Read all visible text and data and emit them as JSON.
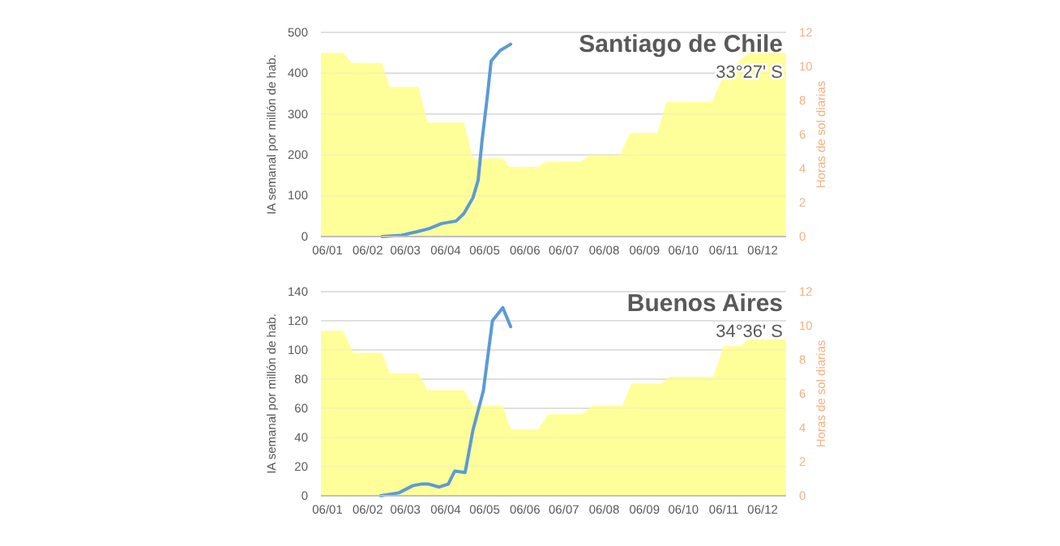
{
  "chart_data": [
    {
      "type": "line",
      "title": "Santiago de Chile",
      "subtitle": "33°27' S",
      "ylabel": "IA semanal por millón de hab.",
      "y2label": "Horas de sol diarias",
      "grid": "y",
      "xlim": [
        "--01-01",
        "--12-24"
      ],
      "xticks": [
        {
          "value": "--01-06",
          "label": "06/01"
        },
        {
          "value": "--02-06",
          "label": "06/02"
        },
        {
          "value": "--03-06",
          "label": "06/03"
        },
        {
          "value": "--04-06",
          "label": "06/04"
        },
        {
          "value": "--05-06",
          "label": "06/05"
        },
        {
          "value": "--06-06",
          "label": "06/06"
        },
        {
          "value": "--07-06",
          "label": "06/07"
        },
        {
          "value": "--08-06",
          "label": "06/08"
        },
        {
          "value": "--09-06",
          "label": "06/09"
        },
        {
          "value": "--10-06",
          "label": "06/10"
        },
        {
          "value": "--11-06",
          "label": "06/11"
        },
        {
          "value": "--12-06",
          "label": "06/12"
        }
      ],
      "ylim": [
        0,
        500
      ],
      "yticks": [
        0,
        100,
        200,
        300,
        400,
        500
      ],
      "y2lim": [
        0,
        12
      ],
      "y2ticks": [
        0,
        2,
        4,
        6,
        8,
        10,
        12
      ],
      "series": [
        {
          "type": "area",
          "axis": "y2",
          "color": "#ffff99",
          "x": [
            "--01-01",
            "--01-18",
            "--01-25",
            "--02-17",
            "--02-23",
            "--03-16",
            "--03-23",
            "--04-20",
            "--04-27",
            "--05-20",
            "--05-25",
            "--06-16",
            "--06-22",
            "--07-19",
            "--07-26",
            "--08-18",
            "--08-26",
            "--09-16",
            "--09-23",
            "--10-28",
            "--11-06",
            "--11-25",
            "--12-24"
          ],
          "values": [
            10.8,
            10.8,
            10.2,
            10.2,
            8.8,
            8.8,
            6.7,
            6.7,
            4.6,
            4.6,
            4.1,
            4.1,
            4.4,
            4.4,
            4.8,
            4.8,
            6.1,
            6.1,
            7.9,
            7.9,
            9.5,
            10.8,
            10.8
          ]
        },
        {
          "color": "#5b9bd5",
          "x": [
            "--02-17",
            "--03-03",
            "--03-15",
            "--03-24",
            "--04-03",
            "--04-14",
            "--04-20",
            "--04-27",
            "--05-01",
            "--05-04",
            "--05-08",
            "--05-11",
            "--05-18",
            "--05-26"
          ],
          "values": [
            0,
            3,
            12,
            19,
            32,
            38,
            56,
            95,
            138,
            235,
            341,
            430,
            456,
            471
          ]
        }
      ]
    },
    {
      "type": "line",
      "title": "Buenos Aires",
      "subtitle": "34°36' S",
      "ylabel": "IA semanal por millón de hab.",
      "y2label": "Horas de sol diarias",
      "grid": "y",
      "xlim": [
        "--01-01",
        "--12-24"
      ],
      "xticks": [
        {
          "value": "--01-06",
          "label": "06/01"
        },
        {
          "value": "--02-06",
          "label": "06/02"
        },
        {
          "value": "--03-06",
          "label": "06/03"
        },
        {
          "value": "--04-06",
          "label": "06/04"
        },
        {
          "value": "--05-06",
          "label": "06/05"
        },
        {
          "value": "--06-06",
          "label": "06/06"
        },
        {
          "value": "--07-06",
          "label": "06/07"
        },
        {
          "value": "--08-06",
          "label": "06/08"
        },
        {
          "value": "--09-06",
          "label": "06/09"
        },
        {
          "value": "--10-06",
          "label": "06/10"
        },
        {
          "value": "--11-06",
          "label": "06/11"
        },
        {
          "value": "--12-06",
          "label": "06/12"
        }
      ],
      "ylim": [
        0,
        140
      ],
      "yticks": [
        0,
        20,
        40,
        60,
        80,
        100,
        120,
        140
      ],
      "y2lim": [
        0,
        12
      ],
      "y2ticks": [
        0,
        2,
        4,
        6,
        8,
        10,
        12
      ],
      "series": [
        {
          "type": "area",
          "axis": "y2",
          "color": "#ffff99",
          "x": [
            "--01-01",
            "--01-18",
            "--01-26",
            "--02-17",
            "--02-23",
            "--03-16",
            "--03-23",
            "--04-20",
            "--04-27",
            "--05-20",
            "--05-26",
            "--06-16",
            "--06-24",
            "--07-20",
            "--07-28",
            "--08-20",
            "--08-27",
            "--09-19",
            "--09-25",
            "--10-29",
            "--11-06",
            "--11-19",
            "--11-25",
            "--12-24"
          ],
          "values": [
            9.7,
            9.7,
            8.4,
            8.4,
            7.2,
            7.2,
            6.2,
            6.2,
            5.3,
            5.3,
            3.9,
            3.9,
            4.8,
            4.8,
            5.3,
            5.3,
            6.6,
            6.6,
            7,
            7,
            8.8,
            8.8,
            9.2,
            9.2
          ]
        },
        {
          "color": "#5b9bd5",
          "x": [
            "--02-16",
            "--03-01",
            "--03-12",
            "--03-18",
            "--03-24",
            "--04-01",
            "--04-08",
            "--04-13",
            "--04-21",
            "--04-27",
            "--05-05",
            "--05-12",
            "--05-20",
            "--05-26"
          ],
          "values": [
            0,
            2,
            7,
            8,
            8,
            6,
            8,
            17,
            16,
            45,
            72,
            120,
            129,
            116
          ]
        }
      ]
    }
  ]
}
